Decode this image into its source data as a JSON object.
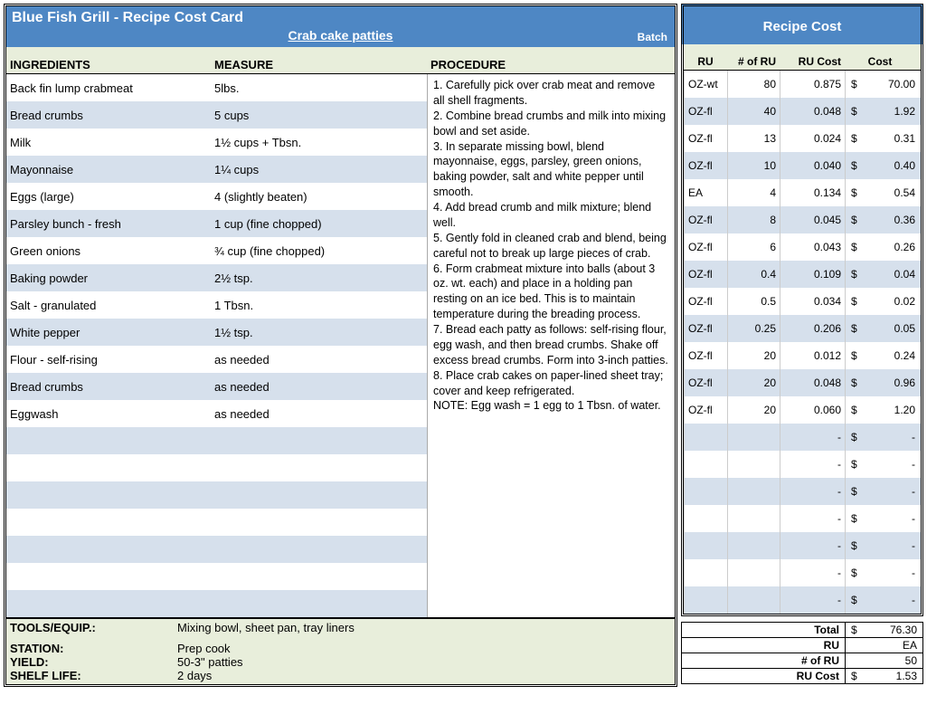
{
  "colors": {
    "header_blue": "#4e87c4",
    "pale_green": "#e8eedb",
    "pale_blue": "#d6e0ec"
  },
  "left": {
    "title": "Blue Fish Grill - Recipe Cost Card",
    "subtitle": "Crab cake patties",
    "batch_label": "Batch",
    "headers": {
      "ingredients": "INGREDIENTS",
      "measure": "MEASURE",
      "procedure": "PROCEDURE"
    },
    "ingredients": [
      {
        "name": "Back fin lump crabmeat",
        "measure": "5lbs."
      },
      {
        "name": "Bread crumbs",
        "measure": "5 cups"
      },
      {
        "name": "Milk",
        "measure": "1½ cups + Tbsn."
      },
      {
        "name": "Mayonnaise",
        "measure": "1¼ cups"
      },
      {
        "name": "Eggs (large)",
        "measure": "4 (slightly beaten)"
      },
      {
        "name": "Parsley bunch - fresh",
        "measure": "1 cup (fine chopped)"
      },
      {
        "name": "Green onions",
        "measure": "¾ cup (fine chopped)"
      },
      {
        "name": "Baking powder",
        "measure": "2½ tsp."
      },
      {
        "name": "Salt - granulated",
        "measure": "1 Tbsn."
      },
      {
        "name": "White pepper",
        "measure": "1½ tsp."
      },
      {
        "name": "Flour - self-rising",
        "measure": "as needed"
      },
      {
        "name": "Bread crumbs",
        "measure": "as needed"
      },
      {
        "name": "Eggwash",
        "measure": "as needed"
      },
      {
        "name": "",
        "measure": ""
      },
      {
        "name": "",
        "measure": ""
      },
      {
        "name": "",
        "measure": ""
      },
      {
        "name": "",
        "measure": ""
      },
      {
        "name": "",
        "measure": ""
      },
      {
        "name": "",
        "measure": ""
      },
      {
        "name": "",
        "measure": ""
      }
    ],
    "procedure_lines": [
      "1. Carefully pick over crab meat and remove all shell fragments.",
      "2. Combine bread crumbs and milk into mixing bowl and set aside.",
      "3. In separate missing bowl, blend mayonnaise, eggs, parsley, green onions, baking powder, salt and white pepper until smooth.",
      "4. Add bread crumb and milk mixture; blend well.",
      "5. Gently fold in cleaned crab and blend, being careful not to break up large pieces of crab.",
      "6. Form crabmeat mixture into balls (about 3 oz. wt. each) and place in a holding pan resting on an ice bed. This is to maintain temperature during the breading process.",
      "7. Bread each patty as follows: self-rising flour, egg wash, and then bread crumbs. Shake off excess bread crumbs. Form into 3-inch patties.",
      "8. Place crab cakes on paper-lined sheet tray; cover and keep refrigerated.",
      "NOTE: Egg wash = 1 egg to 1 Tbsn. of water."
    ],
    "footer": {
      "tools_label": "TOOLS/EQUIP.:",
      "tools": "Mixing bowl, sheet pan, tray liners",
      "station_label": "STATION:",
      "station": "Prep cook",
      "yield_label": "YIELD:",
      "yield": "50-3\" patties",
      "shelf_label": "SHELF LIFE:",
      "shelf": "2 days"
    }
  },
  "right": {
    "title": "Recipe Cost",
    "headers": {
      "ru": "RU",
      "nru": "# of RU",
      "rucost": "RU Cost",
      "cost": "Cost"
    },
    "rows": [
      {
        "ru": "OZ-wt",
        "nru": "80",
        "rucost": "0.875",
        "cost": "70.00"
      },
      {
        "ru": "OZ-fl",
        "nru": "40",
        "rucost": "0.048",
        "cost": "1.92"
      },
      {
        "ru": "OZ-fl",
        "nru": "13",
        "rucost": "0.024",
        "cost": "0.31"
      },
      {
        "ru": "OZ-fl",
        "nru": "10",
        "rucost": "0.040",
        "cost": "0.40"
      },
      {
        "ru": "EA",
        "nru": "4",
        "rucost": "0.134",
        "cost": "0.54"
      },
      {
        "ru": "OZ-fl",
        "nru": "8",
        "rucost": "0.045",
        "cost": "0.36"
      },
      {
        "ru": "OZ-fl",
        "nru": "6",
        "rucost": "0.043",
        "cost": "0.26"
      },
      {
        "ru": "OZ-fl",
        "nru": "0.4",
        "rucost": "0.109",
        "cost": "0.04"
      },
      {
        "ru": "OZ-fl",
        "nru": "0.5",
        "rucost": "0.034",
        "cost": "0.02"
      },
      {
        "ru": "OZ-fl",
        "nru": "0.25",
        "rucost": "0.206",
        "cost": "0.05"
      },
      {
        "ru": "OZ-fl",
        "nru": "20",
        "rucost": "0.012",
        "cost": "0.24"
      },
      {
        "ru": "OZ-fl",
        "nru": "20",
        "rucost": "0.048",
        "cost": "0.96"
      },
      {
        "ru": "OZ-fl",
        "nru": "20",
        "rucost": "0.060",
        "cost": "1.20"
      },
      {
        "ru": "",
        "nru": "",
        "rucost": "-",
        "cost": "-"
      },
      {
        "ru": "",
        "nru": "",
        "rucost": "-",
        "cost": "-"
      },
      {
        "ru": "",
        "nru": "",
        "rucost": "-",
        "cost": "-"
      },
      {
        "ru": "",
        "nru": "",
        "rucost": "-",
        "cost": "-"
      },
      {
        "ru": "",
        "nru": "",
        "rucost": "-",
        "cost": "-"
      },
      {
        "ru": "",
        "nru": "",
        "rucost": "-",
        "cost": "-"
      },
      {
        "ru": "",
        "nru": "",
        "rucost": "-",
        "cost": "-"
      }
    ],
    "summary": {
      "total_label": "Total",
      "total": "76.30",
      "ru_label": "RU",
      "ru": "EA",
      "nru_label": "# of RU",
      "nru": "50",
      "rucost_label": "RU Cost",
      "rucost": "1.53"
    }
  }
}
